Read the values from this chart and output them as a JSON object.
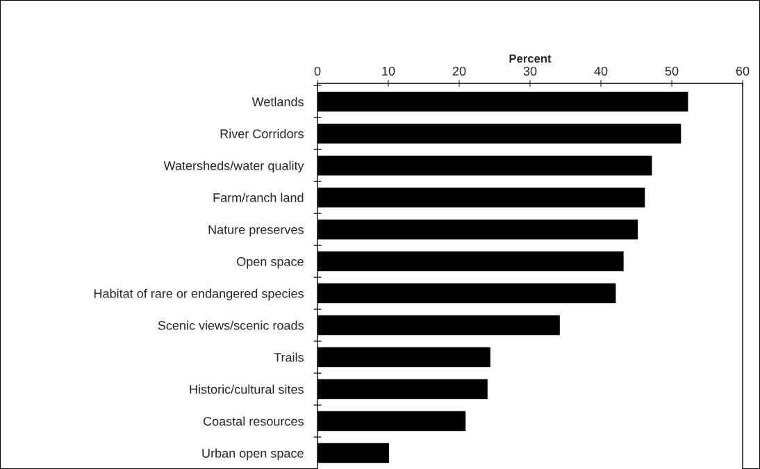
{
  "chart_data": {
    "type": "bar",
    "orientation": "horizontal",
    "xlabel": "Percent",
    "categories": [
      "Wetlands",
      "River Corridors",
      "Watersheds/water quality",
      "Farm/ranch land",
      "Nature preserves",
      "Open space",
      "Habitat of rare or endangered species",
      "Scenic views/scenic roads",
      "Trails",
      "Historic/cultural sites",
      "Coastal resources",
      "Urban open space"
    ],
    "values": [
      52.3,
      51.3,
      47.2,
      46.2,
      45.2,
      43.2,
      42.1,
      34.2,
      24.4,
      24.0,
      20.9,
      10.1
    ],
    "color": "#000000",
    "xlim": [
      0,
      60
    ],
    "xticks": [
      0,
      10,
      20,
      30,
      40,
      50,
      60
    ],
    "grid": false,
    "legend": false
  }
}
